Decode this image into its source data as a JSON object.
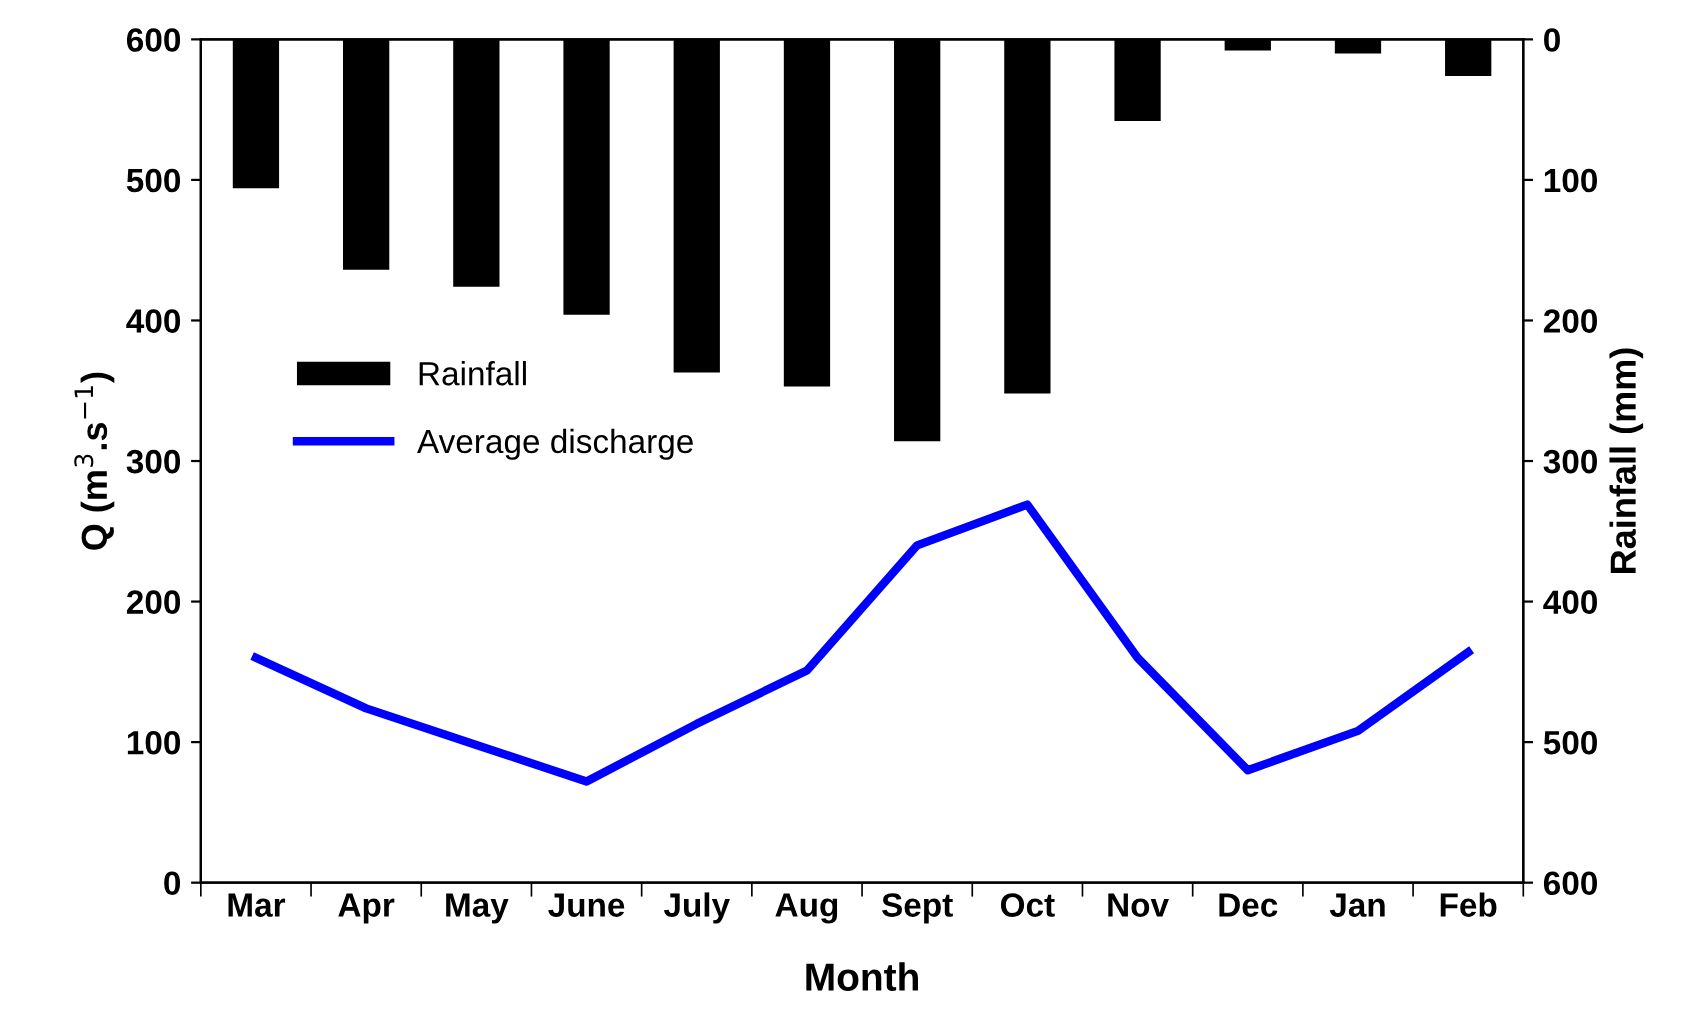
{
  "chart_data": {
    "type": "bar",
    "categories": [
      "Mar",
      "Apr",
      "May",
      "June",
      "July",
      "Aug",
      "Sept",
      "Oct",
      "Nov",
      "Dec",
      "Jan",
      "Feb"
    ],
    "xlabel": "Month",
    "ylabel": "Q (m$^{3}$.s$^{−1}$)",
    "y2label": "Rainfall (mm)",
    "ylim": [
      0,
      600
    ],
    "yticks": [
      0,
      100,
      200,
      300,
      400,
      500,
      600
    ],
    "y2lim": [
      600,
      0
    ],
    "y2ticks": [
      0,
      100,
      200,
      300,
      400,
      500,
      600
    ],
    "legend": "left",
    "grid": false,
    "series": [
      {
        "name": "Rainfall",
        "axis": "y2",
        "color": "#000000",
        "values": [
          106,
          164,
          176,
          196,
          237,
          247,
          286,
          252,
          58,
          8,
          10,
          26
        ]
      },
      {
        "name": "Average discharge",
        "type": "line",
        "color": "#0000ff",
        "marker": "none",
        "line_style": "solid",
        "values": [
          160,
          124,
          98,
          72,
          113,
          151,
          240,
          269,
          160,
          80,
          108,
          164
        ]
      }
    ]
  }
}
